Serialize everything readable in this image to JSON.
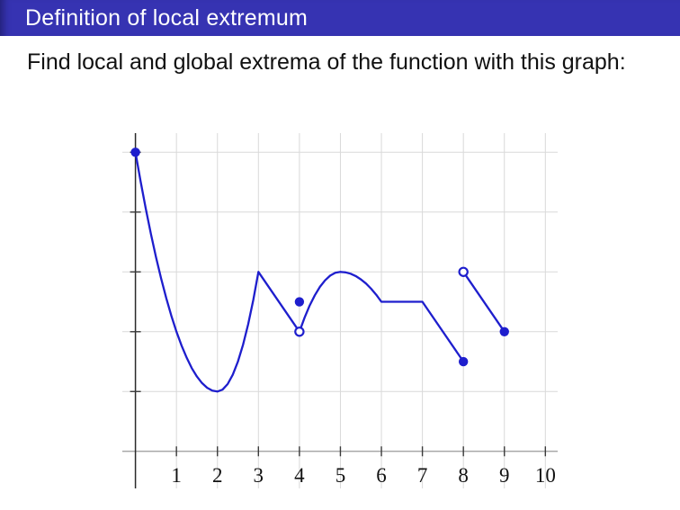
{
  "slide": {
    "title": "Definition of local extremum",
    "body_text": "Find local and global extrema of the function with this graph:"
  },
  "colors": {
    "title_bar_bg": "#3633b2",
    "title_text": "#ffffff",
    "body_text": "#111111",
    "curve": "#1e1ecd",
    "grid": "#d9d9d9",
    "x_axis": "#9a9a9a",
    "y_axis": "#2a2a2a",
    "tick": "#3a3a3a",
    "tick_label": "#111111",
    "open_marker_fill": "#ffffff"
  },
  "chart_data": {
    "type": "line",
    "title": "",
    "xlabel": "",
    "ylabel": "",
    "xlim": [
      -0.32,
      10.3
    ],
    "ylim": [
      -0.62,
      5.32
    ],
    "x_ticks": [
      1,
      2,
      3,
      4,
      5,
      6,
      7,
      8,
      9,
      10
    ],
    "x_tick_labels": [
      "1",
      "2",
      "3",
      "4",
      "5",
      "6",
      "7",
      "8",
      "9",
      "10"
    ],
    "y_ticks": [
      1,
      2,
      3,
      4,
      5
    ],
    "grid": true,
    "legend": null,
    "description": "Piecewise function with removable discontinuity at x=4 (f(4)=2.5) and jump discontinuity at x=8",
    "segments": [
      {
        "name": "branch-0-to-4",
        "points": [
          [
            0,
            5
          ],
          [
            0.125,
            4.516
          ],
          [
            0.25,
            4.063
          ],
          [
            0.375,
            3.641
          ],
          [
            0.5,
            3.25
          ],
          [
            0.625,
            2.891
          ],
          [
            0.75,
            2.563
          ],
          [
            0.875,
            2.266
          ],
          [
            1,
            2
          ],
          [
            1.125,
            1.766
          ],
          [
            1.25,
            1.563
          ],
          [
            1.375,
            1.391
          ],
          [
            1.5,
            1.25
          ],
          [
            1.625,
            1.141
          ],
          [
            1.75,
            1.063
          ],
          [
            1.875,
            1.016
          ],
          [
            2,
            1
          ],
          [
            2.125,
            1.031
          ],
          [
            2.25,
            1.125
          ],
          [
            2.375,
            1.281
          ],
          [
            2.5,
            1.5
          ],
          [
            2.625,
            1.781
          ],
          [
            2.75,
            2.125
          ],
          [
            2.875,
            2.531
          ],
          [
            3,
            3
          ],
          [
            4,
            2
          ]
        ]
      },
      {
        "name": "branch-4-to-8",
        "points": [
          [
            4,
            2
          ],
          [
            4.125,
            2.234
          ],
          [
            4.25,
            2.438
          ],
          [
            4.375,
            2.609
          ],
          [
            4.5,
            2.75
          ],
          [
            4.625,
            2.859
          ],
          [
            4.75,
            2.938
          ],
          [
            4.875,
            2.984
          ],
          [
            5,
            3
          ],
          [
            5.125,
            2.992
          ],
          [
            5.25,
            2.969
          ],
          [
            5.375,
            2.93
          ],
          [
            5.5,
            2.875
          ],
          [
            5.625,
            2.805
          ],
          [
            5.75,
            2.719
          ],
          [
            5.875,
            2.617
          ],
          [
            6,
            2.5
          ],
          [
            7,
            2.5
          ],
          [
            8,
            1.5
          ]
        ]
      },
      {
        "name": "branch-8-to-9",
        "points": [
          [
            8,
            3
          ],
          [
            9,
            2
          ]
        ]
      }
    ],
    "points_filled": [
      [
        0,
        5
      ],
      [
        4,
        2.5
      ],
      [
        8,
        1.5
      ],
      [
        9,
        2
      ]
    ],
    "points_open": [
      [
        4,
        2
      ],
      [
        8,
        3
      ]
    ]
  }
}
